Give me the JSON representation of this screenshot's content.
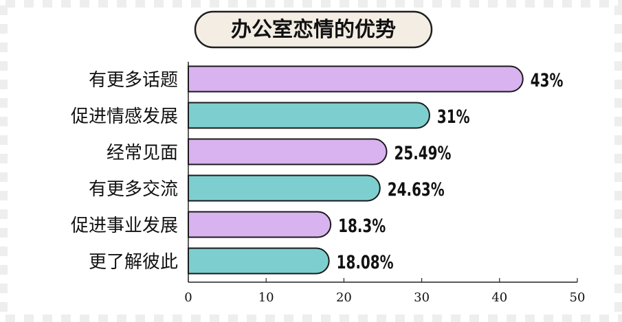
{
  "chart_data": {
    "type": "bar",
    "orientation": "horizontal",
    "title": "办公室恋情的优势",
    "categories": [
      "有更多话题",
      "促进情感发展",
      "经常见面",
      "有更多交流",
      "促进事业发展",
      "更了解彼此"
    ],
    "values": [
      43,
      31,
      25.49,
      24.63,
      18.3,
      18.08
    ],
    "value_labels": [
      "43%",
      "31%",
      "25.49%",
      "24.63%",
      "18.3%",
      "18.08%"
    ],
    "bar_colors": [
      "#d9b2f0",
      "#7dcfcf",
      "#d9b2f0",
      "#7dcfcf",
      "#d9b2f0",
      "#7dcfcf"
    ],
    "xlim": [
      0,
      50
    ],
    "x_ticks": [
      0,
      10,
      20,
      30,
      40,
      50
    ],
    "x_tick_labels": [
      "0",
      "10",
      "20",
      "30",
      "40",
      "50"
    ],
    "xlabel": "",
    "ylabel": "",
    "grid": false,
    "legend": "none"
  },
  "colors": {
    "background": "#ffffff",
    "border_dashes": "#eeeeee",
    "title_pill_fill": "#f4ede4",
    "title_pill_stroke": "#1e1e1e",
    "bar_stroke": "#1a1a1a",
    "text": "#111111"
  }
}
